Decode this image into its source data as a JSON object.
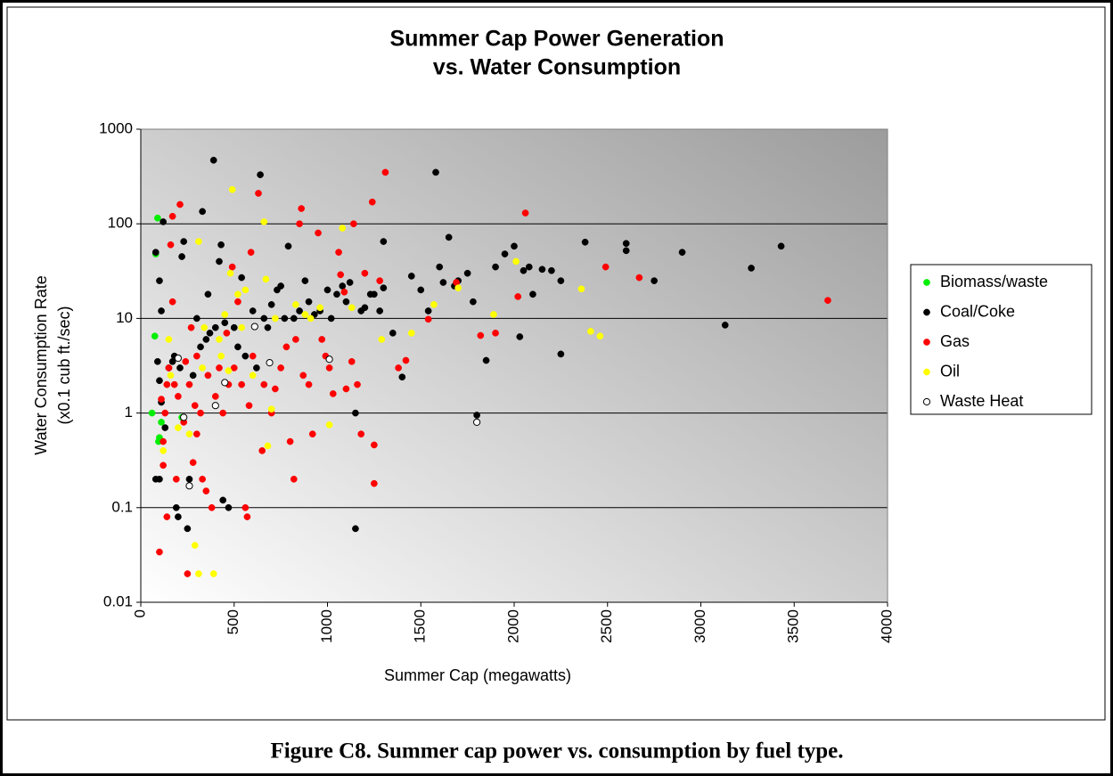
{
  "chart_data": {
    "type": "scatter",
    "title": [
      "Summer Cap Power Generation",
      "vs. Water Consumption"
    ],
    "xlabel": "Summer Cap (megawatts)",
    "ylabel": [
      "Water Consumption Rate",
      "(x0.1 cub ft./sec)"
    ],
    "caption": "Figure C8. Summer cap power vs. consumption by fuel type.",
    "xlim": [
      0,
      4000
    ],
    "xticks": [
      0,
      500,
      1000,
      1500,
      2000,
      2500,
      3000,
      3500,
      4000
    ],
    "ylim": [
      0.01,
      1000
    ],
    "yticks": [
      0.01,
      0.1,
      1,
      10,
      100,
      1000
    ],
    "ylog": true,
    "grid": true,
    "legend": "right",
    "series": [
      {
        "name": "Biomass/waste",
        "color": "#00ee00",
        "x": [
          60,
          75,
          80,
          90,
          95,
          100,
          220,
          110
        ],
        "values": [
          1.0,
          6.5,
          48,
          115,
          0.5,
          0.55,
          0.9,
          0.8
        ]
      },
      {
        "name": "Coal/Coke",
        "color": "#000000",
        "x": [
          80,
          100,
          110,
          120,
          90,
          100,
          110,
          80,
          100,
          150,
          170,
          190,
          200,
          220,
          230,
          250,
          260,
          300,
          330,
          360,
          370,
          390,
          420,
          430,
          440,
          470,
          500,
          540,
          600,
          640,
          680,
          700,
          750,
          790,
          820,
          880,
          900,
          960,
          1000,
          1050,
          1100,
          1150,
          1150,
          1200,
          1250,
          1300,
          1300,
          1350,
          1400,
          1450,
          1540,
          1580,
          1600,
          1650,
          1700,
          1750,
          1800,
          1850,
          1900,
          1950,
          2000,
          2050,
          2100,
          2200,
          2250,
          2250,
          2380,
          2600,
          2600,
          2750,
          2900,
          3130,
          3270,
          3430,
          130,
          180,
          210,
          280,
          320,
          350,
          400,
          450,
          520,
          560,
          620,
          660,
          730,
          770,
          850,
          930,
          1020,
          1080,
          1120,
          1180,
          1230,
          1280,
          1500,
          1620,
          1680,
          1780,
          2030,
          2080,
          2150
        ],
        "values": [
          50,
          25,
          12,
          105,
          3.5,
          2.2,
          1.3,
          0.2,
          0.2,
          3,
          3.5,
          0.1,
          0.08,
          45,
          65,
          0.06,
          0.2,
          10,
          135,
          18,
          7,
          470,
          40,
          60,
          0.12,
          0.1,
          8,
          27,
          12,
          330,
          8,
          14,
          22,
          58,
          10,
          25,
          15,
          12,
          20,
          18,
          15,
          1.0,
          0.06,
          13,
          18,
          65,
          21,
          7,
          2.4,
          28,
          12,
          350,
          35,
          72,
          25,
          30,
          0.95,
          3.6,
          35,
          48,
          58,
          32,
          18,
          32,
          4.2,
          25,
          64,
          52,
          62,
          25,
          50,
          8.5,
          34,
          58,
          0.7,
          4,
          3,
          2.5,
          5,
          6,
          8,
          9,
          5,
          4,
          3,
          10,
          20,
          10,
          12,
          11,
          10,
          22,
          24,
          12,
          18,
          12,
          20,
          24,
          22,
          15,
          6.4,
          35,
          33
        ]
      },
      {
        "name": "Gas",
        "color": "#ff0000",
        "x": [
          100,
          120,
          140,
          170,
          160,
          170,
          210,
          250,
          270,
          290,
          330,
          350,
          380,
          400,
          420,
          460,
          490,
          520,
          560,
          570,
          590,
          630,
          660,
          700,
          780,
          800,
          820,
          850,
          860,
          900,
          950,
          990,
          1030,
          1060,
          1070,
          1090,
          1140,
          1160,
          1180,
          1200,
          1240,
          1250,
          1250,
          1280,
          1310,
          1380,
          1420,
          1540,
          1690,
          1820,
          1900,
          2020,
          2060,
          2490,
          2670,
          3680,
          150,
          180,
          200,
          230,
          260,
          300,
          320,
          360,
          440,
          470,
          500,
          540,
          580,
          600,
          650,
          720,
          750,
          830,
          870,
          920,
          970,
          1010,
          1100,
          1130,
          110,
          120,
          130,
          140,
          190,
          240,
          280,
          300
        ],
        "values": [
          0.034,
          0.28,
          0.08,
          120,
          60,
          15,
          160,
          0.02,
          8,
          1.2,
          0.2,
          0.15,
          0.1,
          1.5,
          3,
          7,
          35,
          15,
          0.1,
          0.08,
          50,
          210,
          2,
          1,
          5,
          0.5,
          0.2,
          100,
          145,
          2,
          80,
          4,
          1.6,
          50,
          29,
          19,
          100,
          2,
          0.6,
          30,
          170,
          0.46,
          0.18,
          25,
          350,
          3,
          3.6,
          9.8,
          24,
          6.6,
          7,
          17,
          130,
          35,
          27,
          15.5,
          3,
          2,
          1.5,
          0.8,
          2,
          4,
          1,
          2.5,
          1,
          2,
          3,
          2,
          1.2,
          4,
          0.4,
          1.8,
          3,
          6,
          2.5,
          0.6,
          6,
          3,
          1.8,
          3.5,
          1.4,
          0.5,
          1,
          2,
          0.2,
          3.5,
          0.3,
          0.6
        ]
      },
      {
        "name": "Oil",
        "color": "#ffff00",
        "x": [
          120,
          150,
          160,
          200,
          230,
          260,
          290,
          310,
          310,
          330,
          390,
          400,
          420,
          450,
          480,
          490,
          520,
          560,
          600,
          660,
          670,
          700,
          720,
          830,
          880,
          910,
          960,
          1010,
          1080,
          1130,
          1290,
          1450,
          1570,
          1700,
          1890,
          2010,
          2360,
          2410,
          2460,
          680,
          340,
          430,
          470,
          540
        ],
        "values": [
          0.4,
          6,
          2.5,
          0.7,
          0.9,
          0.6,
          0.04,
          0.02,
          65,
          3,
          0.02,
          1.2,
          6,
          11,
          30,
          230,
          18,
          20,
          2.5,
          105,
          26,
          1.1,
          10,
          14,
          11,
          10,
          13,
          0.75,
          90,
          13,
          6,
          7,
          14,
          21,
          11,
          40,
          20.5,
          7.3,
          6.5,
          0.45,
          8,
          4,
          2.8,
          8
        ]
      },
      {
        "name": "Waste Heat",
        "color": "#ffffff",
        "edgecolor": "#000000",
        "x": [
          200,
          230,
          260,
          400,
          450,
          610,
          690,
          1010,
          1800
        ],
        "values": [
          3.8,
          0.9,
          0.17,
          1.2,
          2.1,
          8.2,
          3.4,
          3.7,
          0.8
        ]
      }
    ]
  }
}
